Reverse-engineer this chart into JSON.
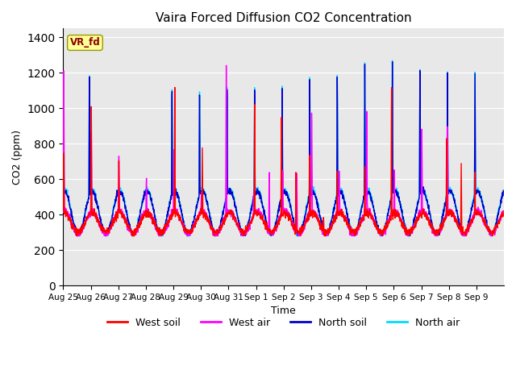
{
  "title": "Vaira Forced Diffusion CO2 Concentration",
  "xlabel": "Time",
  "ylabel": "CO2 (ppm)",
  "ylim": [
    0,
    1450
  ],
  "yticks": [
    0,
    200,
    400,
    600,
    800,
    1000,
    1200,
    1400
  ],
  "legend_labels": [
    "West soil",
    "West air",
    "North soil",
    "North air"
  ],
  "colors": {
    "west_soil": "#ff0000",
    "west_air": "#ff00ff",
    "north_soil": "#0000cc",
    "north_air": "#00ddff"
  },
  "watermark_text": "VR_fd",
  "watermark_color": "#8b0000",
  "watermark_bg": "#ffff99",
  "background_color": "#e8e8e8",
  "line_width": 1.0,
  "n_days": 16,
  "samples_per_day": 144,
  "tick_labels": [
    "Aug 25",
    "Aug 26",
    "Aug 27",
    "Aug 28",
    "Aug 29",
    "Aug 30",
    "Aug 31",
    "Sep 1",
    "Sep 2",
    "Sep 3",
    "Sep 4",
    "Sep 5",
    "Sep 6",
    "Sep 7",
    "Sep 8",
    "Sep 9"
  ]
}
